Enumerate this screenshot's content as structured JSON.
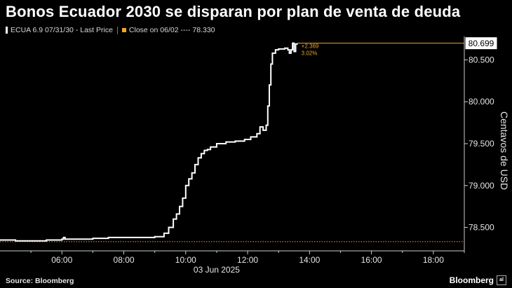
{
  "title": "Bonos Ecuador 2030 se disparan por plan de venta de deuda",
  "legend": {
    "series_label": "ECUA 6.9 07/31/30 - Last Price",
    "close_label": "Close on 06/02",
    "close_dashes": "----",
    "close_value": "78.330"
  },
  "footer": {
    "source": "Source: Bloomberg",
    "brand": "Bloomberg",
    "brand_mark": "al"
  },
  "colors": {
    "line": "#ffffff",
    "close_line": "#f5a623",
    "axis": "#cccccc",
    "background": "#000000"
  },
  "chart_data": {
    "type": "line",
    "title": "Bonos Ecuador 2030 se disparan por plan de venta de deuda",
    "xlabel": "03 Jun 2025",
    "ylabel": "Centavos de USD",
    "x_ticks": [
      "06:00",
      "08:00",
      "10:00",
      "12:00",
      "14:00",
      "16:00",
      "18:00"
    ],
    "x_tick_hours": [
      6,
      8,
      10,
      12,
      14,
      16,
      18
    ],
    "y_ticks": [
      "78.500",
      "79.000",
      "79.500",
      "80.000",
      "80.500"
    ],
    "y_tick_values": [
      78.5,
      79.0,
      79.5,
      80.0,
      80.5
    ],
    "xlim_hours": [
      4.0,
      19.0
    ],
    "ylim": [
      78.22,
      80.78
    ],
    "reference_line": {
      "label": "Close on 06/02",
      "value": 78.33
    },
    "last_value_label": "80.699",
    "annotation_change": "+2.369",
    "annotation_pct": "3.02%",
    "series": [
      {
        "name": "ECUA 6.9 07/31/30 - Last Price",
        "x_hours": [
          4.0,
          4.5,
          5.0,
          5.5,
          6.0,
          6.05,
          6.1,
          6.5,
          7.0,
          7.5,
          8.0,
          8.5,
          9.0,
          9.3,
          9.45,
          9.6,
          9.7,
          9.8,
          9.9,
          10.0,
          10.1,
          10.2,
          10.3,
          10.4,
          10.5,
          10.6,
          10.7,
          10.8,
          11.0,
          11.3,
          11.6,
          11.9,
          12.1,
          12.3,
          12.4,
          12.5,
          12.6,
          12.65,
          12.7,
          12.75,
          12.8,
          12.9,
          13.0,
          13.1,
          13.2,
          13.3,
          13.35,
          13.4,
          13.45,
          13.5,
          13.55,
          13.6
        ],
        "values": [
          78.35,
          78.34,
          78.34,
          78.35,
          78.36,
          78.38,
          78.36,
          78.36,
          78.37,
          78.38,
          78.38,
          78.38,
          78.39,
          78.43,
          78.5,
          78.6,
          78.66,
          78.75,
          78.85,
          79.0,
          79.08,
          79.15,
          79.25,
          79.33,
          79.38,
          79.42,
          79.43,
          79.46,
          79.5,
          79.52,
          79.53,
          79.55,
          79.58,
          79.62,
          79.7,
          79.66,
          79.72,
          79.95,
          80.2,
          80.45,
          80.58,
          80.62,
          80.63,
          80.63,
          80.64,
          80.62,
          80.58,
          80.62,
          80.7,
          80.6,
          80.69,
          80.699
        ]
      }
    ]
  }
}
